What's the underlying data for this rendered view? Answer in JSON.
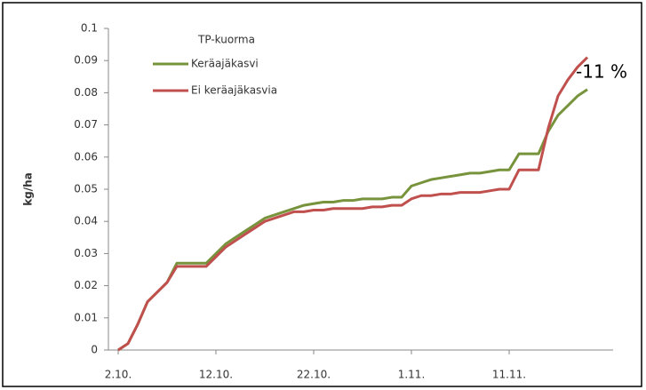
{
  "chart_data": {
    "type": "line",
    "title": "TP-kuorma",
    "y_label": "kg/ha",
    "annotation": "-11 %",
    "categories": [
      "2.10.",
      null,
      null,
      null,
      null,
      null,
      null,
      null,
      null,
      null,
      "12.10.",
      null,
      null,
      null,
      null,
      null,
      null,
      null,
      null,
      null,
      "22.10.",
      null,
      null,
      null,
      null,
      null,
      null,
      null,
      null,
      null,
      "1.11.",
      null,
      null,
      null,
      null,
      null,
      null,
      null,
      null,
      null,
      "11.11.",
      null,
      null,
      null,
      null,
      null,
      null,
      null,
      null,
      null,
      null,
      null
    ],
    "series": [
      {
        "name": "Keräajäkasvi",
        "color": "#77933c",
        "values": [
          0,
          0.002,
          0.008,
          0.015,
          0.018,
          0.021,
          0.027,
          0.027,
          0.027,
          0.027,
          0.03,
          0.033,
          0.035,
          0.037,
          0.039,
          0.041,
          0.042,
          0.043,
          0.044,
          0.045,
          0.0455,
          0.046,
          0.046,
          0.0465,
          0.0465,
          0.047,
          0.047,
          0.047,
          0.0475,
          0.0475,
          0.051,
          0.052,
          0.053,
          0.0535,
          0.054,
          0.0545,
          0.055,
          0.055,
          0.0555,
          0.056,
          0.056,
          0.061,
          0.061,
          0.061,
          0.068,
          0.073,
          0.076,
          0.079,
          0.081,
          null,
          null,
          null
        ]
      },
      {
        "name": "Ei keräajäkasvia",
        "color": "#c0504d",
        "values": [
          0,
          0.002,
          0.008,
          0.015,
          0.018,
          0.021,
          0.026,
          0.026,
          0.026,
          0.026,
          0.029,
          0.032,
          0.034,
          0.036,
          0.038,
          0.04,
          0.041,
          0.042,
          0.043,
          0.043,
          0.0435,
          0.0435,
          0.044,
          0.044,
          0.044,
          0.044,
          0.0445,
          0.0445,
          0.045,
          0.045,
          0.047,
          0.048,
          0.048,
          0.0485,
          0.0485,
          0.049,
          0.049,
          0.049,
          0.0495,
          0.05,
          0.05,
          0.056,
          0.056,
          0.056,
          0.069,
          0.079,
          0.084,
          0.088,
          0.091,
          null,
          null,
          null
        ]
      }
    ],
    "ylim": [
      0,
      0.1
    ],
    "yticks": [
      0,
      0.01,
      0.02,
      0.03,
      0.04,
      0.05,
      0.06,
      0.07,
      0.08,
      0.09,
      0.1
    ],
    "grid": false
  }
}
